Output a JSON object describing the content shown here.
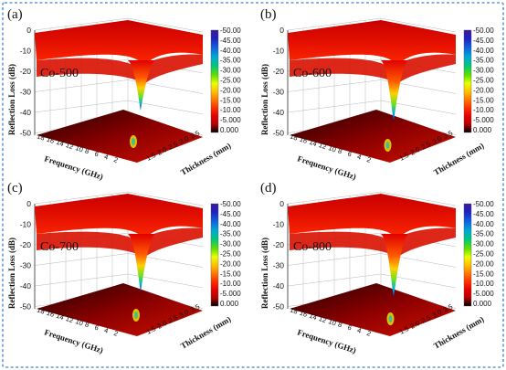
{
  "chart_data": [
    {
      "type": "surface3d",
      "panel_label": "(a)",
      "sample_label": "Co-500",
      "zlabel": "Reflection Loss (dB)",
      "xlabel": "Frequency (GHz)",
      "ylabel": "Thickness (mm)",
      "z_ticks": [
        "0",
        "-10",
        "-20",
        "-30",
        "-40",
        "-50"
      ],
      "x_ticks": [
        "2",
        "4",
        "6",
        "8",
        "10",
        "12",
        "14",
        "16",
        "18"
      ],
      "y_ticks": [
        "1.5",
        "2.0",
        "2.5",
        "3.0",
        "3.5"
      ],
      "colorbar_ticks": [
        "-50.00",
        "-45.00",
        "-40.00",
        "-35.00",
        "-30.00",
        "-25.00",
        "-20.00",
        "-15.00",
        "-10.00",
        "-5.000",
        "0.000"
      ],
      "zlim": [
        -50,
        0
      ],
      "peak_rl": -38
    },
    {
      "type": "surface3d",
      "panel_label": "(b)",
      "sample_label": "Co-600",
      "zlabel": "Reflection Loss (dB)",
      "xlabel": "Frequency (GHz)",
      "ylabel": "Thickness (mm)",
      "z_ticks": [
        "0",
        "-10",
        "-20",
        "-30",
        "-40",
        "-50"
      ],
      "x_ticks": [
        "2",
        "4",
        "6",
        "8",
        "10",
        "12",
        "14",
        "16",
        "18"
      ],
      "y_ticks": [
        "1.5",
        "2.0",
        "2.5",
        "3.0",
        "3.5"
      ],
      "colorbar_ticks": [
        "-50.00",
        "-45.00",
        "-40.00",
        "-35.00",
        "-30.00",
        "-25.00",
        "-20.00",
        "-15.00",
        "-10.00",
        "-5.000",
        "0.000"
      ],
      "zlim": [
        -50,
        0
      ],
      "peak_rl": -46
    },
    {
      "type": "surface3d",
      "panel_label": "(c)",
      "sample_label": "Co-700",
      "zlabel": "Reflection Loss (dB)",
      "xlabel": "Frequency (GHz)",
      "ylabel": "Thickness (mm)",
      "z_ticks": [
        "0",
        "-10",
        "-20",
        "-30",
        "-40",
        "-50"
      ],
      "x_ticks": [
        "2",
        "4",
        "6",
        "8",
        "10",
        "12",
        "14",
        "16",
        "18"
      ],
      "y_ticks": [
        "1.5",
        "2.0",
        "2.5",
        "3.0",
        "3.5"
      ],
      "colorbar_ticks": [
        "-50.00",
        "-45.00",
        "-40.00",
        "-35.00",
        "-30.00",
        "-25.00",
        "-20.00",
        "-15.00",
        "-10.00",
        "-5.000",
        "0.000"
      ],
      "zlim": [
        -50,
        0
      ],
      "peak_rl": -44
    },
    {
      "type": "surface3d",
      "panel_label": "(d)",
      "sample_label": "Co-800",
      "zlabel": "Reflection Loss (dB)",
      "xlabel": "Frequency (GHz)",
      "ylabel": "Thickness (mm)",
      "z_ticks": [
        "0",
        "-10",
        "-20",
        "-30",
        "-40",
        "-50"
      ],
      "x_ticks": [
        "2",
        "4",
        "6",
        "8",
        "10",
        "12",
        "14",
        "16",
        "18"
      ],
      "y_ticks": [
        "1.5",
        "2.0",
        "2.5",
        "3.0",
        "3.5"
      ],
      "colorbar_ticks": [
        "-50.00",
        "-45.00",
        "-40.00",
        "-35.00",
        "-30.00",
        "-25.00",
        "-20.00",
        "-15.00",
        "-10.00",
        "-5.000",
        "0.000"
      ],
      "zlim": [
        -50,
        0
      ],
      "peak_rl": -48
    }
  ],
  "colorscale": [
    "#000000",
    "#5a0000",
    "#b50000",
    "#e60000",
    "#ff3000",
    "#ff7a00",
    "#ffc000",
    "#e8ff00",
    "#60e000",
    "#00c878",
    "#00a8d8",
    "#1060e0",
    "#2020c0",
    "#3a1aa0"
  ]
}
